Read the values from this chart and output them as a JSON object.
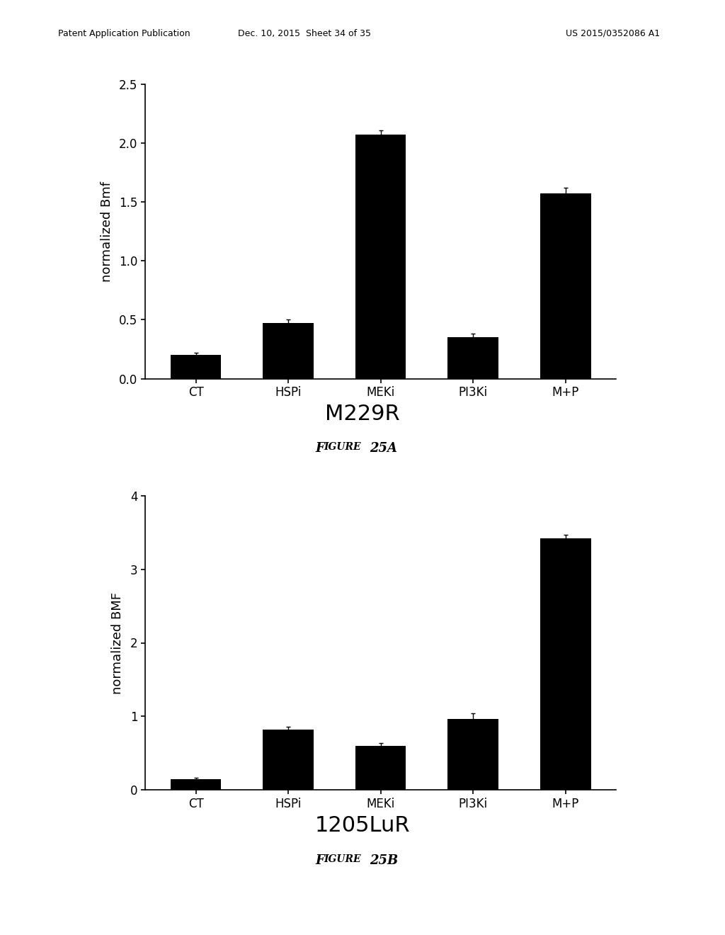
{
  "chart1": {
    "categories": [
      "CT",
      "HSPi",
      "MEKi",
      "PI3Ki",
      "M+P"
    ],
    "values": [
      0.2,
      0.47,
      2.07,
      0.35,
      1.57
    ],
    "errors": [
      0.02,
      0.03,
      0.04,
      0.03,
      0.05
    ],
    "ylabel": "normalized Bmf",
    "ylim": [
      0,
      2.5
    ],
    "yticks": [
      0.0,
      0.5,
      1.0,
      1.5,
      2.0,
      2.5
    ],
    "ytick_labels": [
      "0.0",
      "0.5",
      "1.0",
      "1.5",
      "2.0",
      "2.5"
    ],
    "title": "M229R",
    "figure_label_prefix": "Figure ",
    "figure_label_number": "25A"
  },
  "chart2": {
    "categories": [
      "CT",
      "HSPi",
      "MEKi",
      "PI3Ki",
      "M+P"
    ],
    "values": [
      0.15,
      0.82,
      0.6,
      0.97,
      3.42
    ],
    "errors": [
      0.02,
      0.04,
      0.04,
      0.07,
      0.05
    ],
    "ylabel": "normalized BMF",
    "ylim": [
      0,
      4
    ],
    "yticks": [
      0,
      1,
      2,
      3,
      4
    ],
    "ytick_labels": [
      "0",
      "1",
      "2",
      "3",
      "4"
    ],
    "title": "1205LuR",
    "figure_label_prefix": "Figure ",
    "figure_label_number": "25B"
  },
  "bar_color": "#000000",
  "bar_width": 0.55,
  "background_color": "#ffffff",
  "text_color": "#000000",
  "header_left": "Patent Application Publication",
  "header_mid": "Dec. 10, 2015  Sheet 34 of 35",
  "header_right": "US 2015/0352086 A1"
}
